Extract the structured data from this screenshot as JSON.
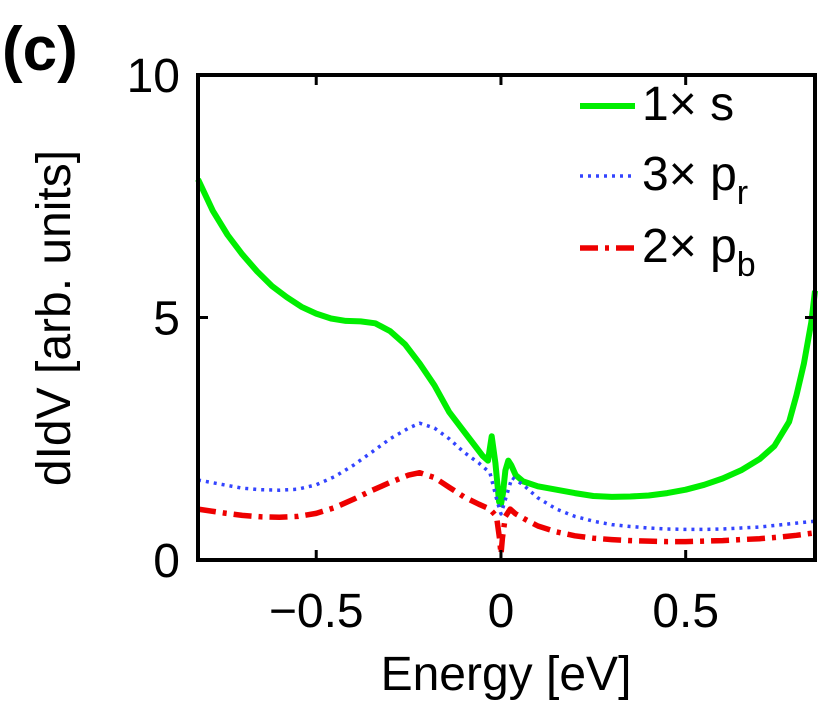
{
  "panel_label": "(c)",
  "chart_data": {
    "type": "line",
    "title": "",
    "xlabel": "Energy [eV]",
    "ylabel": "dIdV [arb. units]",
    "xlim": [
      -0.82,
      0.85
    ],
    "ylim": [
      0,
      10
    ],
    "xticks": [
      -0.5,
      0,
      0.5
    ],
    "xtick_labels": [
      "−0.5",
      "0",
      "0.5"
    ],
    "yticks": [
      0,
      5,
      10
    ],
    "ytick_labels": [
      "0",
      "5",
      "10"
    ],
    "grid": false,
    "legend_position": "top-right",
    "series": [
      {
        "name": "1× s",
        "legend_prefix": "1× s",
        "legend_sub": "",
        "color": "#00ee00",
        "dash": "solid",
        "points": [
          [
            -0.82,
            7.85
          ],
          [
            -0.78,
            7.2
          ],
          [
            -0.74,
            6.7
          ],
          [
            -0.7,
            6.3
          ],
          [
            -0.66,
            5.95
          ],
          [
            -0.62,
            5.65
          ],
          [
            -0.58,
            5.42
          ],
          [
            -0.54,
            5.22
          ],
          [
            -0.5,
            5.08
          ],
          [
            -0.46,
            4.98
          ],
          [
            -0.42,
            4.93
          ],
          [
            -0.38,
            4.92
          ],
          [
            -0.34,
            4.88
          ],
          [
            -0.3,
            4.72
          ],
          [
            -0.26,
            4.45
          ],
          [
            -0.22,
            4.05
          ],
          [
            -0.18,
            3.6
          ],
          [
            -0.14,
            3.05
          ],
          [
            -0.1,
            2.65
          ],
          [
            -0.07,
            2.35
          ],
          [
            -0.05,
            2.15
          ],
          [
            -0.035,
            2.05
          ],
          [
            -0.025,
            2.55
          ],
          [
            -0.015,
            2.0
          ],
          [
            -0.005,
            1.2
          ],
          [
            0.0,
            1.15
          ],
          [
            0.005,
            1.35
          ],
          [
            0.012,
            1.85
          ],
          [
            0.02,
            2.05
          ],
          [
            0.028,
            1.95
          ],
          [
            0.04,
            1.75
          ],
          [
            0.06,
            1.62
          ],
          [
            0.1,
            1.52
          ],
          [
            0.15,
            1.45
          ],
          [
            0.2,
            1.38
          ],
          [
            0.25,
            1.32
          ],
          [
            0.3,
            1.3
          ],
          [
            0.35,
            1.31
          ],
          [
            0.4,
            1.33
          ],
          [
            0.45,
            1.38
          ],
          [
            0.5,
            1.45
          ],
          [
            0.55,
            1.55
          ],
          [
            0.6,
            1.68
          ],
          [
            0.65,
            1.85
          ],
          [
            0.7,
            2.08
          ],
          [
            0.74,
            2.35
          ],
          [
            0.78,
            2.85
          ],
          [
            0.8,
            3.4
          ],
          [
            0.82,
            4.05
          ],
          [
            0.84,
            4.9
          ],
          [
            0.85,
            5.55
          ]
        ]
      },
      {
        "name": "3× p_r",
        "legend_prefix": "3× p",
        "legend_sub": "r",
        "color": "#3344ff",
        "dash": "dotted",
        "points": [
          [
            -0.82,
            1.65
          ],
          [
            -0.75,
            1.55
          ],
          [
            -0.7,
            1.48
          ],
          [
            -0.65,
            1.45
          ],
          [
            -0.6,
            1.44
          ],
          [
            -0.55,
            1.46
          ],
          [
            -0.5,
            1.55
          ],
          [
            -0.45,
            1.72
          ],
          [
            -0.4,
            1.95
          ],
          [
            -0.35,
            2.22
          ],
          [
            -0.3,
            2.5
          ],
          [
            -0.25,
            2.72
          ],
          [
            -0.22,
            2.82
          ],
          [
            -0.18,
            2.72
          ],
          [
            -0.14,
            2.5
          ],
          [
            -0.1,
            2.22
          ],
          [
            -0.06,
            2.0
          ],
          [
            -0.03,
            1.8
          ],
          [
            -0.01,
            1.2
          ],
          [
            0.0,
            0.95
          ],
          [
            0.01,
            1.2
          ],
          [
            0.03,
            1.7
          ],
          [
            0.06,
            1.55
          ],
          [
            0.1,
            1.28
          ],
          [
            0.15,
            1.05
          ],
          [
            0.2,
            0.9
          ],
          [
            0.25,
            0.8
          ],
          [
            0.3,
            0.73
          ],
          [
            0.35,
            0.69
          ],
          [
            0.4,
            0.66
          ],
          [
            0.45,
            0.64
          ],
          [
            0.5,
            0.63
          ],
          [
            0.55,
            0.63
          ],
          [
            0.6,
            0.64
          ],
          [
            0.65,
            0.66
          ],
          [
            0.7,
            0.68
          ],
          [
            0.75,
            0.72
          ],
          [
            0.8,
            0.76
          ],
          [
            0.85,
            0.8
          ]
        ]
      },
      {
        "name": "2× p_b",
        "legend_prefix": "2× p",
        "legend_sub": "b",
        "color": "#ee0000",
        "dash": "dashdot",
        "points": [
          [
            -0.82,
            1.05
          ],
          [
            -0.75,
            0.97
          ],
          [
            -0.7,
            0.92
          ],
          [
            -0.65,
            0.89
          ],
          [
            -0.6,
            0.88
          ],
          [
            -0.55,
            0.9
          ],
          [
            -0.5,
            0.96
          ],
          [
            -0.45,
            1.08
          ],
          [
            -0.4,
            1.25
          ],
          [
            -0.35,
            1.43
          ],
          [
            -0.3,
            1.6
          ],
          [
            -0.25,
            1.75
          ],
          [
            -0.22,
            1.8
          ],
          [
            -0.18,
            1.7
          ],
          [
            -0.14,
            1.5
          ],
          [
            -0.1,
            1.3
          ],
          [
            -0.06,
            1.15
          ],
          [
            -0.03,
            1.05
          ],
          [
            -0.012,
            0.9
          ],
          [
            -0.004,
            0.45
          ],
          [
            0.0,
            0.12
          ],
          [
            0.004,
            0.45
          ],
          [
            0.012,
            0.9
          ],
          [
            0.025,
            1.05
          ],
          [
            0.04,
            0.95
          ],
          [
            0.07,
            0.82
          ],
          [
            0.1,
            0.7
          ],
          [
            0.15,
            0.58
          ],
          [
            0.2,
            0.5
          ],
          [
            0.25,
            0.45
          ],
          [
            0.3,
            0.42
          ],
          [
            0.35,
            0.4
          ],
          [
            0.4,
            0.39
          ],
          [
            0.45,
            0.38
          ],
          [
            0.5,
            0.38
          ],
          [
            0.55,
            0.39
          ],
          [
            0.6,
            0.4
          ],
          [
            0.65,
            0.42
          ],
          [
            0.7,
            0.44
          ],
          [
            0.75,
            0.47
          ],
          [
            0.8,
            0.51
          ],
          [
            0.85,
            0.56
          ]
        ]
      }
    ]
  }
}
